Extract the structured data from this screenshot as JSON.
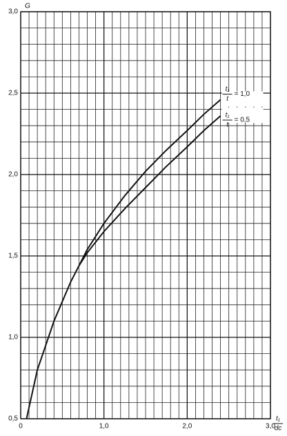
{
  "chart_data": {
    "type": "line",
    "ylabel": "G",
    "xlabel": {
      "num": "t₁",
      "den": "dc"
    },
    "xlim": [
      0,
      3
    ],
    "ylim": [
      0.5,
      3
    ],
    "xticks": [
      0,
      {
        "value": 1,
        "label": "1,0"
      },
      {
        "value": 2,
        "label": "2,0"
      },
      {
        "value": 3,
        "label": "3,0"
      }
    ],
    "yticks": [
      {
        "value": 0.5,
        "label": "0,5"
      },
      {
        "value": 1,
        "label": "1,0"
      },
      {
        "value": 1.5,
        "label": "1,5"
      },
      {
        "value": 2,
        "label": "2,0"
      },
      {
        "value": 2.5,
        "label": "2,5"
      },
      {
        "value": 3,
        "label": "3,0"
      }
    ],
    "grid": true,
    "minor_grid": {
      "x": 0.1,
      "y": 0.1
    },
    "series": [
      {
        "label": {
          "num": "t₁",
          "den": "t",
          "eq": "= 1,0"
        },
        "color": "#111111",
        "x": [
          0.07,
          0.2,
          0.4,
          0.6,
          0.8,
          1.0,
          1.25,
          1.5,
          1.75,
          2.0,
          2.2,
          2.4
        ],
        "values": [
          0.5,
          0.8,
          1.1,
          1.34,
          1.54,
          1.7,
          1.87,
          2.02,
          2.15,
          2.27,
          2.37,
          2.46
        ]
      },
      {
        "label": {
          "num": "t₁",
          "den": "t",
          "eq": "= 0,5"
        },
        "color": "#111111",
        "x": [
          0.7,
          0.8,
          1.0,
          1.25,
          1.5,
          1.75,
          2.0,
          2.2,
          2.4
        ],
        "values": [
          1.44,
          1.52,
          1.65,
          1.79,
          1.92,
          2.05,
          2.17,
          2.27,
          2.36
        ]
      }
    ]
  }
}
